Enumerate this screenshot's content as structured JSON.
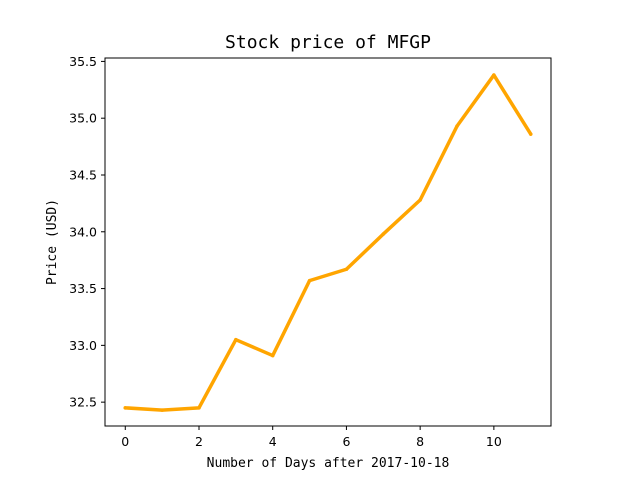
{
  "chart_data": {
    "type": "line",
    "title": "Stock price of MFGP",
    "xlabel": "Number of Days after 2017-10-18",
    "ylabel": "Price (USD)",
    "xlim": [
      -0.55,
      11.55
    ],
    "ylim": [
      32.29,
      35.53
    ],
    "xticks": [
      0,
      2,
      4,
      6,
      8,
      10
    ],
    "yticks": [
      32.5,
      33.0,
      33.5,
      34.0,
      34.5,
      35.0,
      35.5
    ],
    "xtick_labels": [
      "0",
      "2",
      "4",
      "6",
      "8",
      "10"
    ],
    "ytick_labels": [
      "32.5",
      "33.0",
      "33.5",
      "34.0",
      "34.5",
      "35.0",
      "35.5"
    ],
    "grid": false,
    "series": [
      {
        "color": "#ffa500",
        "x": [
          0,
          1,
          2,
          3,
          4,
          5,
          6,
          7,
          8,
          9,
          10,
          11
        ],
        "y": [
          32.45,
          32.43,
          32.45,
          33.05,
          32.91,
          33.57,
          33.67,
          33.98,
          34.28,
          34.93,
          35.38,
          34.86
        ]
      }
    ]
  }
}
